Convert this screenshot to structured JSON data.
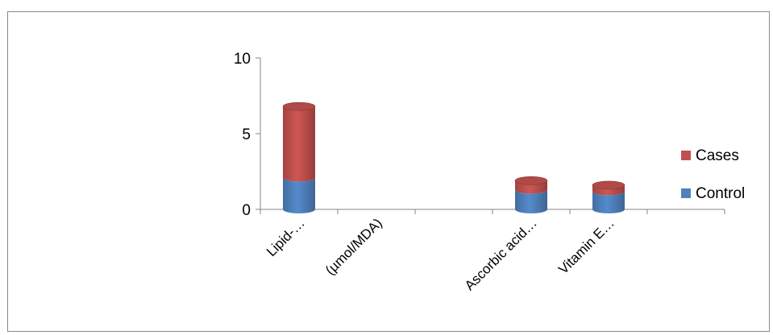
{
  "chart_data": {
    "type": "bar",
    "variant": "stacked-cylinder",
    "categories": [
      "Lipid-…",
      "(µmol/MDA)",
      "",
      "Ascorbic acid…",
      "Vitamin E…",
      ""
    ],
    "series": [
      {
        "name": "Control",
        "color": "#4F81BD",
        "values": [
          2.1,
          0,
          0,
          1.3,
          1.2,
          0
        ]
      },
      {
        "name": "Cases",
        "color": "#C0504D",
        "values": [
          4.7,
          0,
          0,
          0.6,
          0.4,
          0
        ]
      }
    ],
    "y_ticks": [
      "0",
      "5",
      "10"
    ],
    "ylim": [
      0,
      10
    ],
    "title": "",
    "xlabel": "",
    "ylabel": "",
    "legend_position": "right",
    "grid": false
  }
}
